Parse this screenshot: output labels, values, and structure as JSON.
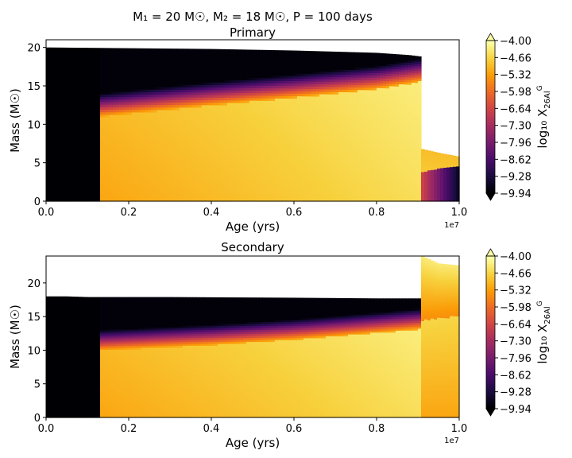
{
  "figure": {
    "suptitle": "M₁ = 20 M☉, M₂ = 18 M☉, P = 100 days"
  },
  "colormap": {
    "name": "inferno",
    "stops": [
      "#000004",
      "#1b0c41",
      "#4a0c6b",
      "#781c6d",
      "#a52c60",
      "#cf4446",
      "#ed6925",
      "#fb9b06",
      "#f7d13d",
      "#fcffa4"
    ]
  },
  "chart_data": [
    {
      "type": "heatmap",
      "title": "Primary",
      "xlabel": "Age (yrs)",
      "ylabel": "Mass (M☉)",
      "x_offset_label": "1e7",
      "xlim": [
        0,
        1.0
      ],
      "ylim": [
        0,
        21
      ],
      "xticks": [
        "0.0",
        "0.2",
        "0.4",
        "0.6",
        "0.8",
        "1.0"
      ],
      "yticks": [
        "0",
        "5",
        "10",
        "15",
        "20"
      ],
      "colorbar": {
        "label": "log₁₀ X₂₆Al^G",
        "label_main": "log₁₀ X",
        "label_sub": "26Al",
        "label_sup": "G",
        "range": [
          -9.94,
          -4.0
        ],
        "ticks": [
          "−4.00",
          "−4.66",
          "−5.32",
          "−5.98",
          "−6.64",
          "−7.30",
          "−7.96",
          "−8.62",
          "−9.28",
          "−9.94"
        ],
        "extend": "both"
      },
      "regions": {
        "total_mass_profile": [
          [
            0,
            20.0
          ],
          [
            0.2,
            19.9
          ],
          [
            0.4,
            19.8
          ],
          [
            0.6,
            19.6
          ],
          [
            0.8,
            19.3
          ],
          [
            0.88,
            19.0
          ],
          [
            0.91,
            18.8
          ]
        ],
        "after_transfer_mass_profile": [
          [
            0.91,
            6.8
          ],
          [
            0.95,
            6.3
          ],
          [
            1.0,
            5.8
          ]
        ],
        "al26_onset_age": 0.13,
        "mass_transfer_age": 0.91,
        "convective_core_boundary": [
          [
            0.13,
            12.0
          ],
          [
            0.4,
            13.5
          ],
          [
            0.6,
            14.5
          ],
          [
            0.8,
            15.6
          ],
          [
            0.91,
            16.6
          ]
        ],
        "late_core_boundary": [
          [
            0.91,
            3.8
          ],
          [
            0.95,
            4.3
          ],
          [
            1.0,
            4.6
          ]
        ]
      }
    },
    {
      "type": "heatmap",
      "title": "Secondary",
      "xlabel": "Age (yrs)",
      "ylabel": "Mass (M☉)",
      "x_offset_label": "1e7",
      "xlim": [
        0,
        1.0
      ],
      "ylim": [
        0,
        24
      ],
      "xticks": [
        "0.0",
        "0.2",
        "0.4",
        "0.6",
        "0.8",
        "1.0"
      ],
      "yticks": [
        "0",
        "5",
        "10",
        "15",
        "20"
      ],
      "colorbar": {
        "label": "log₁₀ X₂₆Al^G",
        "label_main": "log₁₀ X",
        "label_sub": "26Al",
        "label_sup": "G",
        "range": [
          -9.94,
          -4.0
        ],
        "ticks": [
          "−4.00",
          "−4.66",
          "−5.32",
          "−5.98",
          "−6.64",
          "−7.30",
          "−7.96",
          "−8.62",
          "−9.28",
          "−9.94"
        ],
        "extend": "both"
      },
      "regions": {
        "total_mass_profile": [
          [
            0,
            18.0
          ],
          [
            0.05,
            18.0
          ],
          [
            0.1,
            17.9
          ],
          [
            0.3,
            17.9
          ],
          [
            0.6,
            17.8
          ],
          [
            0.8,
            17.7
          ],
          [
            0.91,
            17.7
          ]
        ],
        "after_transfer_mass_profile": [
          [
            0.91,
            24.0
          ],
          [
            0.95,
            22.9
          ],
          [
            1.0,
            22.6
          ]
        ],
        "al26_onset_age": 0.13,
        "mass_transfer_age": 0.91,
        "convective_core_boundary": [
          [
            0.13,
            11.0
          ],
          [
            0.4,
            11.8
          ],
          [
            0.6,
            12.6
          ],
          [
            0.8,
            13.6
          ],
          [
            0.91,
            14.2
          ]
        ],
        "late_core_boundary": [
          [
            0.91,
            14.5
          ],
          [
            0.95,
            14.8
          ],
          [
            1.0,
            15.2
          ]
        ]
      }
    }
  ]
}
